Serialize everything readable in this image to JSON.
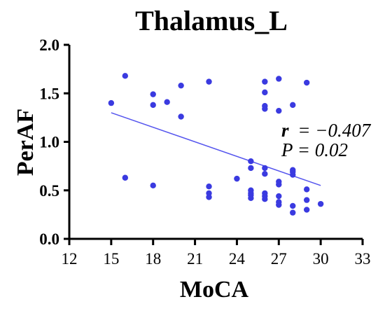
{
  "chart_data": {
    "type": "scatter",
    "title": "Thalamus_L",
    "xlabel": "MoCA",
    "ylabel": "PerAF",
    "xlim": [
      12,
      33
    ],
    "ylim": [
      0.0,
      2.0
    ],
    "xticks": [
      12,
      15,
      18,
      21,
      24,
      27,
      30,
      33
    ],
    "yticks": [
      0.0,
      0.5,
      1.0,
      1.5,
      2.0
    ],
    "xtick_labels": [
      "12",
      "15",
      "18",
      "21",
      "24",
      "27",
      "30",
      "33"
    ],
    "ytick_labels": [
      "0.0",
      "0.5",
      "1.0",
      "1.5",
      "2.0"
    ],
    "grid": false,
    "point_color": "#3a3ae0",
    "line_color": "#5555ee",
    "points": [
      {
        "x": 15,
        "y": 1.4
      },
      {
        "x": 16,
        "y": 1.68
      },
      {
        "x": 16,
        "y": 0.63
      },
      {
        "x": 18,
        "y": 1.49
      },
      {
        "x": 18,
        "y": 1.38
      },
      {
        "x": 18,
        "y": 0.55
      },
      {
        "x": 19,
        "y": 1.41
      },
      {
        "x": 20,
        "y": 1.58
      },
      {
        "x": 20,
        "y": 1.26
      },
      {
        "x": 22,
        "y": 1.62
      },
      {
        "x": 22,
        "y": 0.54
      },
      {
        "x": 22,
        "y": 0.47
      },
      {
        "x": 22,
        "y": 0.43
      },
      {
        "x": 24,
        "y": 0.62
      },
      {
        "x": 25,
        "y": 0.8
      },
      {
        "x": 25,
        "y": 0.73
      },
      {
        "x": 25,
        "y": 0.5
      },
      {
        "x": 25,
        "y": 0.47
      },
      {
        "x": 25,
        "y": 0.45
      },
      {
        "x": 25,
        "y": 0.42
      },
      {
        "x": 26,
        "y": 1.62
      },
      {
        "x": 26,
        "y": 1.51
      },
      {
        "x": 26,
        "y": 1.37
      },
      {
        "x": 26,
        "y": 1.34
      },
      {
        "x": 26,
        "y": 0.73
      },
      {
        "x": 26,
        "y": 0.67
      },
      {
        "x": 26,
        "y": 0.47
      },
      {
        "x": 26,
        "y": 0.44
      },
      {
        "x": 26,
        "y": 0.41
      },
      {
        "x": 27,
        "y": 1.65
      },
      {
        "x": 27,
        "y": 1.32
      },
      {
        "x": 27,
        "y": 0.59
      },
      {
        "x": 27,
        "y": 0.56
      },
      {
        "x": 27,
        "y": 0.44
      },
      {
        "x": 27,
        "y": 0.38
      },
      {
        "x": 27,
        "y": 0.35
      },
      {
        "x": 28,
        "y": 1.38
      },
      {
        "x": 28,
        "y": 0.71
      },
      {
        "x": 28,
        "y": 0.69
      },
      {
        "x": 28,
        "y": 0.66
      },
      {
        "x": 28,
        "y": 0.34
      },
      {
        "x": 28,
        "y": 0.27
      },
      {
        "x": 29,
        "y": 1.61
      },
      {
        "x": 29,
        "y": 0.51
      },
      {
        "x": 29,
        "y": 0.4
      },
      {
        "x": 29,
        "y": 0.3
      },
      {
        "x": 30,
        "y": 0.36
      }
    ],
    "regression_line": {
      "x": [
        15,
        30
      ],
      "y": [
        1.3,
        0.55
      ]
    },
    "annotations": {
      "r_symbol": "r",
      "r_value": "= −0.407",
      "p_text": "P = 0.02"
    }
  }
}
